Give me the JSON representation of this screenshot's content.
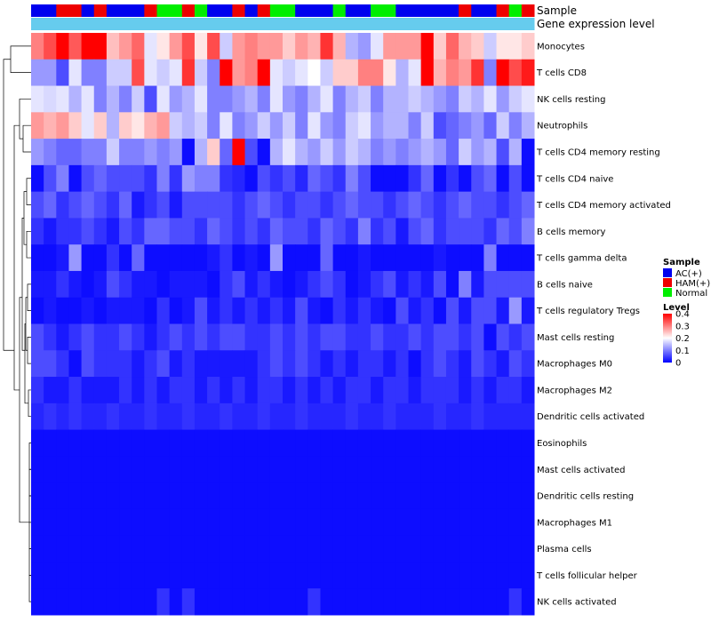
{
  "chart_data": {
    "type": "heatmap",
    "title": "",
    "annotation_labels": {
      "sample": "Sample",
      "gene": "Gene expression level"
    },
    "rows": [
      "Monocytes",
      "T cells CD8",
      "NK cells resting",
      "Neutrophils",
      "T cells CD4 memory resting",
      "T cells CD4 naive",
      "T cells CD4 memory activated",
      "B cells memory",
      "T cells gamma delta",
      "B cells naive",
      "T cells regulatory  Tregs",
      "Mast cells resting",
      "Macrophages M0",
      "Macrophages M2",
      "Dendritic cells activated",
      "Eosinophils",
      "Mast cells activated",
      "Dendritic cells resting",
      "Macrophages M1",
      "Plasma cells",
      "T cells follicular helper",
      "NK cells activated"
    ],
    "sample_groups": [
      "AC(+)",
      "HAM(+)",
      "Normal"
    ],
    "group_colors": {
      "AC(+)": "#0000ee",
      "HAM(+)": "#ee0000",
      "Normal": "#00ee00"
    },
    "column_samples": [
      "AC(+)",
      "AC(+)",
      "HAM(+)",
      "HAM(+)",
      "AC(+)",
      "HAM(+)",
      "AC(+)",
      "AC(+)",
      "AC(+)",
      "HAM(+)",
      "Normal",
      "Normal",
      "HAM(+)",
      "Normal",
      "AC(+)",
      "AC(+)",
      "HAM(+)",
      "AC(+)",
      "HAM(+)",
      "Normal",
      "Normal",
      "AC(+)",
      "AC(+)",
      "AC(+)",
      "Normal",
      "AC(+)",
      "AC(+)",
      "Normal",
      "Normal",
      "AC(+)",
      "AC(+)",
      "AC(+)",
      "AC(+)",
      "AC(+)",
      "HAM(+)",
      "AC(+)",
      "AC(+)",
      "HAM(+)",
      "Normal",
      "HAM(+)"
    ],
    "gene_expression_color": "#66ccee",
    "values": [
      [
        0.3,
        0.34,
        0.4,
        0.33,
        0.42,
        0.42,
        0.25,
        0.28,
        0.32,
        0.18,
        0.22,
        0.28,
        0.34,
        0.22,
        0.34,
        0.16,
        0.28,
        0.3,
        0.28,
        0.28,
        0.24,
        0.28,
        0.26,
        0.36,
        0.26,
        0.14,
        0.12,
        0.18,
        0.28,
        0.28,
        0.28,
        0.42,
        0.24,
        0.32,
        0.26,
        0.24,
        0.16,
        0.22,
        0.22,
        0.24
      ],
      [
        0.12,
        0.12,
        0.06,
        0.18,
        0.1,
        0.1,
        0.16,
        0.16,
        0.34,
        0.18,
        0.16,
        0.18,
        0.36,
        0.16,
        0.1,
        0.4,
        0.28,
        0.3,
        0.42,
        0.18,
        0.16,
        0.18,
        0.2,
        0.16,
        0.24,
        0.24,
        0.3,
        0.3,
        0.22,
        0.14,
        0.18,
        0.42,
        0.26,
        0.3,
        0.28,
        0.36,
        0.1,
        0.42,
        0.34,
        0.38
      ],
      [
        0.18,
        0.17,
        0.18,
        0.14,
        0.18,
        0.1,
        0.14,
        0.1,
        0.16,
        0.06,
        0.18,
        0.12,
        0.14,
        0.18,
        0.1,
        0.1,
        0.12,
        0.14,
        0.1,
        0.18,
        0.12,
        0.1,
        0.14,
        0.18,
        0.1,
        0.14,
        0.16,
        0.1,
        0.14,
        0.14,
        0.16,
        0.14,
        0.12,
        0.1,
        0.16,
        0.14,
        0.18,
        0.12,
        0.16,
        0.18
      ],
      [
        0.28,
        0.26,
        0.28,
        0.24,
        0.18,
        0.24,
        0.14,
        0.24,
        0.22,
        0.26,
        0.28,
        0.16,
        0.14,
        0.16,
        0.1,
        0.18,
        0.1,
        0.12,
        0.16,
        0.12,
        0.16,
        0.1,
        0.18,
        0.12,
        0.1,
        0.16,
        0.18,
        0.12,
        0.14,
        0.14,
        0.1,
        0.16,
        0.06,
        0.08,
        0.1,
        0.12,
        0.08,
        0.16,
        0.1,
        0.14
      ],
      [
        0.12,
        0.1,
        0.08,
        0.08,
        0.1,
        0.1,
        0.16,
        0.1,
        0.1,
        0.12,
        0.1,
        0.12,
        0.01,
        0.14,
        0.24,
        0.08,
        0.42,
        0.06,
        0.01,
        0.14,
        0.18,
        0.14,
        0.12,
        0.16,
        0.12,
        0.16,
        0.14,
        0.1,
        0.12,
        0.1,
        0.12,
        0.14,
        0.12,
        0.08,
        0.16,
        0.12,
        0.14,
        0.06,
        0.14,
        0.01
      ],
      [
        0.01,
        0.06,
        0.1,
        0.01,
        0.06,
        0.08,
        0.06,
        0.06,
        0.06,
        0.04,
        0.1,
        0.04,
        0.12,
        0.1,
        0.1,
        0.04,
        0.03,
        0.01,
        0.06,
        0.04,
        0.06,
        0.03,
        0.08,
        0.06,
        0.04,
        0.1,
        0.06,
        0.01,
        0.01,
        0.01,
        0.04,
        0.08,
        0.01,
        0.04,
        0.01,
        0.06,
        0.08,
        0.01,
        0.06,
        0.01
      ],
      [
        0.06,
        0.08,
        0.04,
        0.06,
        0.08,
        0.06,
        0.04,
        0.08,
        0.02,
        0.04,
        0.06,
        0.02,
        0.06,
        0.06,
        0.06,
        0.06,
        0.04,
        0.06,
        0.08,
        0.06,
        0.04,
        0.06,
        0.06,
        0.04,
        0.06,
        0.08,
        0.06,
        0.06,
        0.04,
        0.06,
        0.08,
        0.06,
        0.04,
        0.06,
        0.08,
        0.06,
        0.06,
        0.04,
        0.06,
        0.08
      ],
      [
        0.04,
        0.02,
        0.04,
        0.04,
        0.06,
        0.04,
        0.02,
        0.06,
        0.04,
        0.08,
        0.08,
        0.06,
        0.06,
        0.04,
        0.08,
        0.06,
        0.04,
        0.06,
        0.04,
        0.08,
        0.06,
        0.06,
        0.04,
        0.08,
        0.06,
        0.04,
        0.1,
        0.04,
        0.06,
        0.02,
        0.06,
        0.08,
        0.04,
        0.06,
        0.06,
        0.06,
        0.04,
        0.08,
        0.06,
        0.1
      ],
      [
        0.01,
        0.01,
        0.02,
        0.12,
        0.01,
        0.01,
        0.04,
        0.01,
        0.08,
        0.01,
        0.01,
        0.01,
        0.01,
        0.01,
        0.02,
        0.04,
        0.01,
        0.02,
        0.01,
        0.12,
        0.01,
        0.01,
        0.01,
        0.08,
        0.01,
        0.01,
        0.02,
        0.01,
        0.01,
        0.01,
        0.01,
        0.01,
        0.02,
        0.01,
        0.01,
        0.01,
        0.1,
        0.01,
        0.01,
        0.01
      ],
      [
        0.02,
        0.02,
        0.04,
        0.02,
        0.01,
        0.02,
        0.06,
        0.04,
        0.02,
        0.02,
        0.01,
        0.02,
        0.02,
        0.02,
        0.01,
        0.04,
        0.06,
        0.02,
        0.04,
        0.02,
        0.01,
        0.02,
        0.04,
        0.06,
        0.04,
        0.01,
        0.02,
        0.04,
        0.06,
        0.02,
        0.04,
        0.02,
        0.06,
        0.01,
        0.1,
        0.02,
        0.06,
        0.06,
        0.06,
        0.06
      ],
      [
        0.01,
        0.02,
        0.01,
        0.01,
        0.02,
        0.01,
        0.02,
        0.02,
        0.02,
        0.01,
        0.04,
        0.01,
        0.02,
        0.06,
        0.02,
        0.04,
        0.02,
        0.04,
        0.02,
        0.04,
        0.02,
        0.06,
        0.02,
        0.01,
        0.04,
        0.02,
        0.04,
        0.02,
        0.01,
        0.06,
        0.02,
        0.04,
        0.01,
        0.06,
        0.02,
        0.06,
        0.06,
        0.02,
        0.12,
        0.02
      ],
      [
        0.06,
        0.04,
        0.02,
        0.04,
        0.06,
        0.04,
        0.04,
        0.06,
        0.04,
        0.02,
        0.04,
        0.06,
        0.04,
        0.06,
        0.04,
        0.06,
        0.06,
        0.04,
        0.04,
        0.06,
        0.04,
        0.06,
        0.04,
        0.06,
        0.06,
        0.04,
        0.04,
        0.06,
        0.04,
        0.04,
        0.06,
        0.04,
        0.06,
        0.06,
        0.04,
        0.06,
        0.01,
        0.06,
        0.04,
        0.06
      ],
      [
        0.06,
        0.06,
        0.04,
        0.01,
        0.06,
        0.04,
        0.04,
        0.04,
        0.02,
        0.04,
        0.06,
        0.02,
        0.04,
        0.02,
        0.02,
        0.02,
        0.02,
        0.02,
        0.04,
        0.06,
        0.04,
        0.06,
        0.04,
        0.02,
        0.04,
        0.02,
        0.04,
        0.04,
        0.02,
        0.04,
        0.01,
        0.04,
        0.06,
        0.04,
        0.02,
        0.06,
        0.04,
        0.02,
        0.06,
        0.04
      ],
      [
        0.04,
        0.02,
        0.02,
        0.04,
        0.02,
        0.02,
        0.02,
        0.04,
        0.02,
        0.04,
        0.02,
        0.04,
        0.04,
        0.02,
        0.04,
        0.02,
        0.04,
        0.02,
        0.04,
        0.04,
        0.02,
        0.04,
        0.02,
        0.04,
        0.02,
        0.04,
        0.04,
        0.02,
        0.04,
        0.04,
        0.02,
        0.04,
        0.04,
        0.04,
        0.02,
        0.04,
        0.02,
        0.04,
        0.04,
        0.02
      ],
      [
        0.03,
        0.04,
        0.03,
        0.04,
        0.03,
        0.03,
        0.04,
        0.03,
        0.03,
        0.04,
        0.03,
        0.03,
        0.04,
        0.03,
        0.03,
        0.04,
        0.03,
        0.03,
        0.04,
        0.03,
        0.03,
        0.04,
        0.03,
        0.03,
        0.03,
        0.04,
        0.03,
        0.03,
        0.04,
        0.03,
        0.03,
        0.03,
        0.04,
        0.03,
        0.03,
        0.04,
        0.03,
        0.03,
        0.03,
        0.03
      ],
      [
        0.01,
        0.01,
        0.01,
        0.01,
        0.01,
        0.01,
        0.01,
        0.01,
        0.01,
        0.01,
        0.01,
        0.01,
        0.01,
        0.01,
        0.01,
        0.01,
        0.01,
        0.01,
        0.01,
        0.01,
        0.01,
        0.01,
        0.01,
        0.01,
        0.01,
        0.01,
        0.01,
        0.01,
        0.01,
        0.01,
        0.01,
        0.01,
        0.01,
        0.01,
        0.01,
        0.01,
        0.01,
        0.01,
        0.01,
        0.01
      ],
      [
        0.01,
        0.01,
        0.01,
        0.01,
        0.01,
        0.01,
        0.01,
        0.01,
        0.01,
        0.01,
        0.01,
        0.01,
        0.01,
        0.01,
        0.01,
        0.01,
        0.01,
        0.01,
        0.01,
        0.01,
        0.01,
        0.01,
        0.01,
        0.01,
        0.01,
        0.01,
        0.01,
        0.01,
        0.01,
        0.01,
        0.01,
        0.01,
        0.01,
        0.01,
        0.01,
        0.01,
        0.01,
        0.01,
        0.01,
        0.01
      ],
      [
        0.01,
        0.01,
        0.01,
        0.01,
        0.01,
        0.01,
        0.01,
        0.01,
        0.01,
        0.01,
        0.01,
        0.01,
        0.01,
        0.01,
        0.01,
        0.01,
        0.01,
        0.01,
        0.01,
        0.01,
        0.01,
        0.01,
        0.01,
        0.01,
        0.01,
        0.01,
        0.01,
        0.01,
        0.01,
        0.01,
        0.01,
        0.01,
        0.01,
        0.01,
        0.01,
        0.01,
        0.01,
        0.01,
        0.01,
        0.01
      ],
      [
        0.01,
        0.01,
        0.01,
        0.01,
        0.01,
        0.01,
        0.01,
        0.01,
        0.01,
        0.01,
        0.01,
        0.01,
        0.01,
        0.01,
        0.01,
        0.01,
        0.01,
        0.01,
        0.01,
        0.01,
        0.01,
        0.01,
        0.01,
        0.01,
        0.01,
        0.01,
        0.01,
        0.01,
        0.01,
        0.01,
        0.01,
        0.01,
        0.01,
        0.01,
        0.01,
        0.01,
        0.01,
        0.01,
        0.01,
        0.01
      ],
      [
        0.01,
        0.01,
        0.01,
        0.01,
        0.01,
        0.01,
        0.01,
        0.01,
        0.01,
        0.01,
        0.01,
        0.01,
        0.01,
        0.01,
        0.01,
        0.01,
        0.01,
        0.01,
        0.01,
        0.01,
        0.01,
        0.01,
        0.01,
        0.01,
        0.01,
        0.01,
        0.01,
        0.01,
        0.01,
        0.01,
        0.01,
        0.01,
        0.01,
        0.01,
        0.01,
        0.01,
        0.01,
        0.01,
        0.01,
        0.01
      ],
      [
        0.01,
        0.01,
        0.01,
        0.01,
        0.01,
        0.01,
        0.01,
        0.01,
        0.01,
        0.01,
        0.01,
        0.01,
        0.01,
        0.01,
        0.01,
        0.01,
        0.01,
        0.01,
        0.01,
        0.01,
        0.01,
        0.01,
        0.01,
        0.01,
        0.01,
        0.01,
        0.01,
        0.01,
        0.01,
        0.01,
        0.01,
        0.01,
        0.01,
        0.01,
        0.01,
        0.01,
        0.01,
        0.01,
        0.01,
        0.01
      ],
      [
        0.01,
        0.01,
        0.01,
        0.01,
        0.01,
        0.01,
        0.01,
        0.01,
        0.01,
        0.01,
        0.04,
        0.01,
        0.04,
        0.01,
        0.01,
        0.01,
        0.01,
        0.01,
        0.01,
        0.01,
        0.01,
        0.01,
        0.04,
        0.01,
        0.01,
        0.01,
        0.01,
        0.01,
        0.01,
        0.01,
        0.01,
        0.01,
        0.01,
        0.01,
        0.01,
        0.01,
        0.01,
        0.01,
        0.04,
        0.01
      ]
    ],
    "color_scale": {
      "low": "#0000ff",
      "mid": "#ffffff",
      "high": "#ff0000",
      "min": 0,
      "mid_value": 0.2,
      "max": 0.4
    },
    "legend": {
      "sample_title": "Sample",
      "level_title": "Level",
      "level_ticks": [
        0.4,
        0.3,
        0.2,
        0.1,
        0
      ],
      "position": "right"
    }
  }
}
